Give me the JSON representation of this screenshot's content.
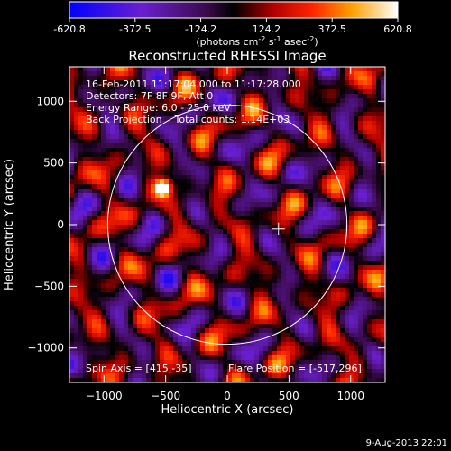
{
  "colorbar": {
    "ticks": [
      "-620.8",
      "-372.5",
      "-124.2",
      "124.2",
      "372.5",
      "620.8"
    ],
    "tick_values": [
      -620.8,
      -372.5,
      -124.2,
      124.2,
      372.5,
      620.8
    ],
    "range": [
      -620.8,
      620.8
    ],
    "units_prefix": "(photons cm",
    "units_exp1": "-2",
    "units_mid": " s",
    "units_exp2": "-1",
    "units_mid2": " asec",
    "units_exp3": "-2",
    "units_suffix": ")",
    "colormap": "blue-purple-black-red-yellow-white"
  },
  "plot": {
    "title": "Reconstructed RHESSI Image",
    "info_lines": [
      "16-Feb-2011 11:17:04.000 to 11:17:28.000",
      "Detectors: 7F 8F 9F, Att 0",
      "Energy Range: 6.0 - 25.0 keV",
      "Back Projection    Total counts: 1.14E+03"
    ],
    "footer_left": "Spin Axis = [415,-35]",
    "footer_right": "Flare Position = [-517,296]",
    "timestamp": "9-Aug-2013 22:01"
  },
  "chart_data": {
    "type": "heatmap",
    "title": "Reconstructed RHESSI Image",
    "xlabel": "Heliocentric X (arcsec)",
    "ylabel": "Heliocentric Y (arcsec)",
    "xlim": [
      -1280,
      1280
    ],
    "ylim": [
      -1280,
      1280
    ],
    "x_ticks": [
      -1000,
      -500,
      0,
      500,
      1000
    ],
    "y_ticks": [
      -1000,
      -500,
      0,
      500,
      1000
    ],
    "x_tick_labels": [
      "−1000",
      "−500",
      "0",
      "500",
      "1000"
    ],
    "y_tick_labels": [
      "−1000",
      "−500",
      "0",
      "500",
      "1000"
    ],
    "value_range": [
      -620.8,
      620.8
    ],
    "solar_limb_radius_arcsec": 970,
    "spin_axis_marker": [
      415,
      -35
    ],
    "bright_source": [
      -520,
      300
    ]
  }
}
